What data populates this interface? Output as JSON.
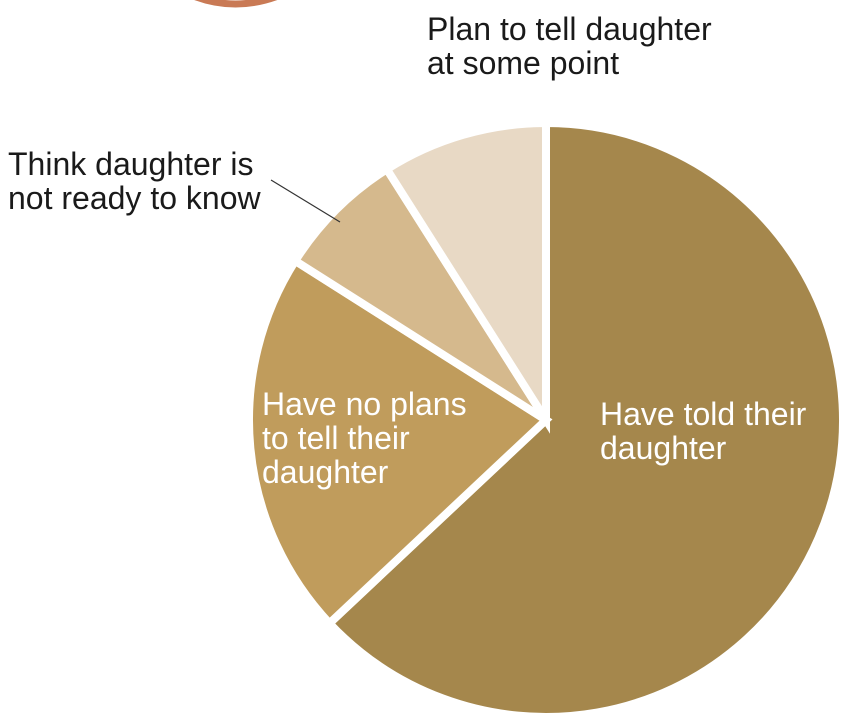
{
  "chart_data": {
    "type": "pie",
    "title": "",
    "start_angle_deg": 0,
    "direction": "clockwise",
    "colors": {
      "background": "#ffffff",
      "separator": "#ffffff",
      "leader_line": "#333333",
      "decorative_arc": "#c97a55"
    },
    "slices": [
      {
        "label": "Have told their\ndaughter",
        "value": 63,
        "color": "#a5874c",
        "label_position": "inside"
      },
      {
        "label": "Have no plans\nto tell their\ndaughter",
        "value": 21,
        "color": "#c09c5c",
        "label_position": "inside"
      },
      {
        "label": "Think daughter is\nnot ready to know",
        "value": 7,
        "color": "#d5b98d",
        "label_position": "outside"
      },
      {
        "label": "Plan to tell daughter\nat some point",
        "value": 9,
        "color": "#e8d9c5",
        "label_position": "outside"
      }
    ]
  }
}
